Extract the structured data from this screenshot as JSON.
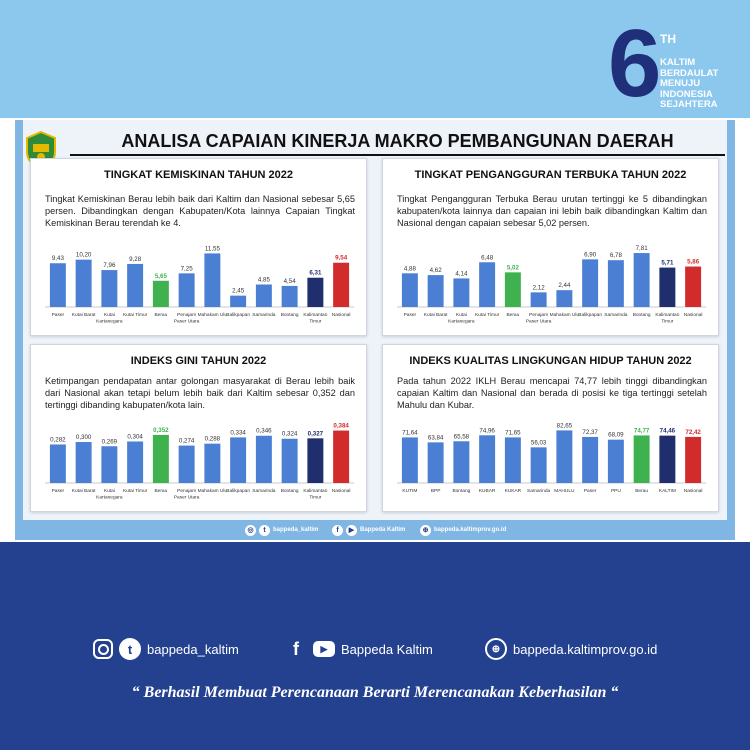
{
  "badge": {
    "number": "6",
    "suffix": "TH",
    "lines": [
      "KALTIM",
      "BERDAULAT",
      "MENUJU",
      "INDONESIA",
      "SEJAHTERA"
    ]
  },
  "main_title": "ANALISA CAPAIAN KINERJA MAKRO PEMBANGUNAN DAERAH",
  "colors": {
    "default_bar": "#4a7fd4",
    "berau_bar": "#3fb24f",
    "kaltim_bar": "#1f2f6e",
    "nasional_bar": "#d22b2b",
    "footer_bg": "#24418f",
    "top_band": "#8cc8ee"
  },
  "chart_data": [
    {
      "type": "bar",
      "title": "TINGKAT KEMISKINAN TAHUN 2022",
      "description": "Tingkat Kemiskinan Berau lebih baik dari Kaltim dan Nasional sebesar 5,65 persen. Dibandingkan dengan Kabupaten/Kota lainnya Capaian Tingkat Kemiskinan Berau terendah ke 4.",
      "categories": [
        "Paser",
        "Kutai Barat",
        "Kutai Kartanegara",
        "Kutai Timur",
        "Berau",
        "Penajam Paser Utara",
        "Mahakam Ulu",
        "Balikpapan",
        "Samarinda",
        "Bontang",
        "Kalimantan Timur",
        "Nasional"
      ],
      "values": [
        9.43,
        10.2,
        7.96,
        9.28,
        5.65,
        7.25,
        11.55,
        2.45,
        4.85,
        4.54,
        6.31,
        9.54
      ],
      "value_labels": [
        "9,43",
        "10,20",
        "7,96",
        "9,28",
        "5,65",
        "7,25",
        "11,55",
        "2,45",
        "4,85",
        "4,54",
        "6,31",
        "9,54"
      ],
      "ylim": [
        0,
        12.5
      ]
    },
    {
      "type": "bar",
      "title": "TINGKAT PENGANGGURAN TERBUKA TAHUN 2022",
      "description": "Tingkat Pengangguran Terbuka Berau urutan tertinggi ke 5 dibandingkan kabupaten/kota lainnya dan capaian ini lebih baik dibandingkan Kaltim dan Nasional dengan capaian sebesar 5,02 persen.",
      "categories": [
        "Paser",
        "Kutai Barat",
        "Kutai Kartanegara",
        "Kutai Timur",
        "Berau",
        "Penajam Paser Utara",
        "Mahakam Ulu",
        "Balikpapan",
        "Samarinda",
        "Bontang",
        "Kalimantan Timur",
        "Nasional"
      ],
      "values": [
        4.88,
        4.62,
        4.14,
        6.48,
        5.02,
        2.12,
        2.44,
        6.9,
        6.78,
        7.81,
        5.71,
        5.86
      ],
      "value_labels": [
        "4,88",
        "4,62",
        "4,14",
        "6,48",
        "5,02",
        "2,12",
        "2,44",
        "6,90",
        "6,78",
        "7,81",
        "5,71",
        "5,86"
      ],
      "ylim": [
        0,
        8.4
      ]
    },
    {
      "type": "bar",
      "title": "INDEKS GINI TAHUN 2022",
      "description": "Ketimpangan pendapatan antar golongan masyarakat di Berau lebih baik dari Nasional akan tetapi belum lebih baik dari Kaltim sebesar 0,352 dan tertinggi dibanding kabupaten/kota lain.",
      "categories": [
        "Paser",
        "Kutai Barat",
        "Kutai Kartanegara",
        "Kutai Timur",
        "Berau",
        "Penajam Paser Utara",
        "Mahakam Ulu",
        "Balikpapan",
        "Samarinda",
        "Bontang",
        "Kalimantan Timur",
        "Nasional"
      ],
      "values": [
        0.282,
        0.3,
        0.269,
        0.304,
        0.352,
        0.274,
        0.288,
        0.334,
        0.346,
        0.324,
        0.327,
        0.384
      ],
      "value_labels": [
        "0,282",
        "0,300",
        "0,269",
        "0,304",
        "0,352",
        "0,274",
        "0,288",
        "0,334",
        "0,346",
        "0,324",
        "0,327",
        "0,384"
      ],
      "ylim": [
        0,
        0.41
      ]
    },
    {
      "type": "bar",
      "title": "INDEKS KUALITAS LINGKUNGAN HIDUP TAHUN 2022",
      "description": "Pada tahun 2022 IKLH Berau mencapai 74,77 lebih tinggi dibandingkan capaian Kaltim dan Nasional dan berada di posisi ke tiga tertinggi setelah Mahulu dan Kubar.",
      "categories": [
        "KUTIM",
        "BPP",
        "Bontang",
        "KUBAR",
        "KUKAR",
        "Samarinda",
        "MAHULU",
        "Paser",
        "PPU",
        "Berau",
        "KALTIM",
        "Nasional"
      ],
      "values": [
        71.64,
        63.84,
        65.58,
        74.96,
        71.65,
        56.03,
        82.65,
        72.37,
        68.09,
        74.77,
        74.46,
        72.42
      ],
      "value_labels": [
        "71,64",
        "63,84",
        "65,58",
        "74,96",
        "71,65",
        "56,03",
        "82,65",
        "72,37",
        "68,09",
        "74,77",
        "74,46",
        "72,42"
      ],
      "ylim": [
        0,
        88
      ]
    }
  ],
  "strip": {
    "instagram": "bappeda_kaltim",
    "facebook": "Bappeda Kaltim",
    "website": "bappeda.kaltimprov.go.id"
  },
  "footer": {
    "instagram_handle": "bappeda_kaltim",
    "facebook_name": "Bappeda Kaltim",
    "website": "bappeda.kaltimprov.go.id",
    "slogan": "“ Berhasil  Membuat Perencanaan Berarti Merencanakan Keberhasilan “"
  }
}
